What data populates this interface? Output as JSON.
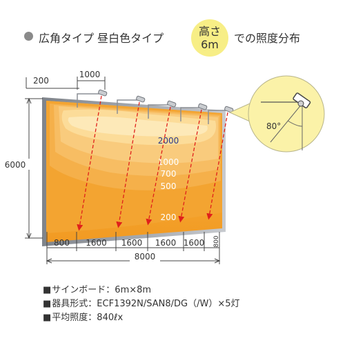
{
  "title": {
    "left_text": "広角タイプ 昼白色タイプ",
    "badge_line1": "高さ",
    "badge_line2": "6m",
    "right_text": "での照度分布"
  },
  "dimensions": {
    "offset_top": "200",
    "spacing_top": "1000",
    "height": "6000",
    "bottom_segments": [
      "800",
      "1600",
      "1600",
      "1600",
      "1600",
      "800"
    ],
    "total_width": "8000"
  },
  "contours": [
    {
      "label": "2000"
    },
    {
      "label": "1000"
    },
    {
      "label": "700"
    },
    {
      "label": "500"
    },
    {
      "label": "200"
    }
  ],
  "angle_label": "80°",
  "specs": [
    "サインボード：6m×8m",
    "器具形式：ECF1392N/SAN8/DG（/W）×5灯",
    "平均照度：840ℓx"
  ],
  "colors": {
    "board_dark": "#f3a127",
    "board_light": "#fdeab0",
    "board_frame": "#a9adb3",
    "beam": "#e0201b",
    "badge": "#f7ee86",
    "inset_circle": "#fbf2a8"
  }
}
